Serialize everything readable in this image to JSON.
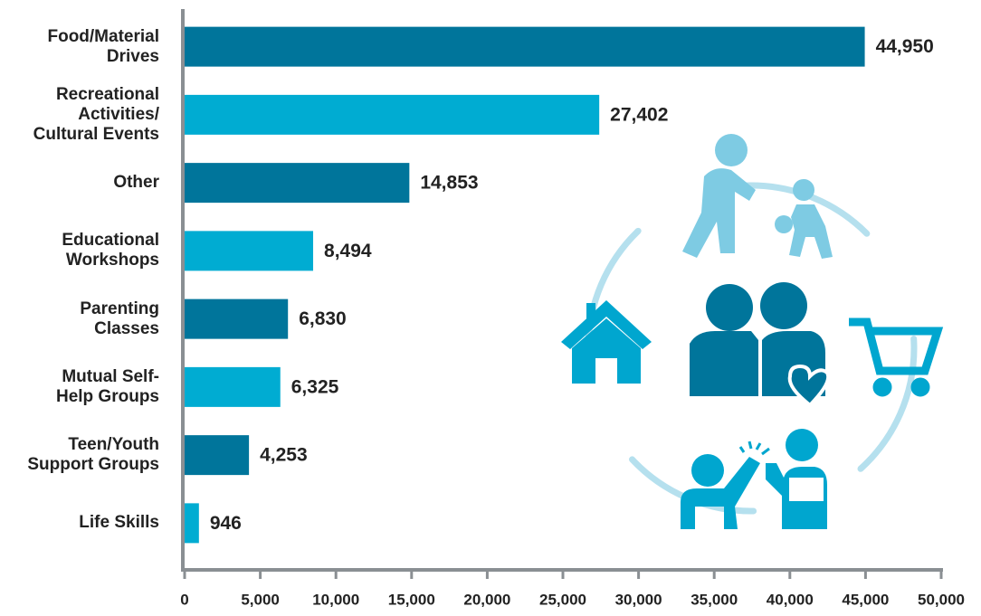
{
  "chart_data": {
    "type": "bar",
    "orientation": "horizontal",
    "categories": [
      "Food/Material\nDrives",
      "Recreational\nActivities/\nCultural Events",
      "Other",
      "Educational\nWorkshops",
      "Parenting\nClasses",
      "Mutual Self-\nHelp Groups",
      "Teen/Youth\nSupport Groups",
      "Life Skills"
    ],
    "values": [
      44950,
      27402,
      14853,
      8494,
      6830,
      6325,
      4253,
      946
    ],
    "value_labels": [
      "44,950",
      "27,402",
      "14,853",
      "8,494",
      "6,830",
      "6,325",
      "4,253",
      "946"
    ],
    "colors": [
      "#00759b",
      "#00acd2"
    ],
    "xlim": [
      0,
      50000
    ],
    "xticks": [
      0,
      {
        "value": 5000,
        "label": "5,000"
      },
      {
        "value": 10000,
        "label": "10,000"
      },
      {
        "value": 15000,
        "label": "15,000"
      },
      {
        "value": 20000,
        "label": "20,000"
      },
      {
        "value": 25000,
        "label": "25,000"
      },
      {
        "value": 30000,
        "label": "30,000"
      },
      {
        "value": 35000,
        "label": "35,000"
      },
      {
        "value": 40000,
        "label": "40,000"
      },
      {
        "value": 45000,
        "label": "45,000"
      },
      {
        "value": 50000,
        "label": "50,000"
      }
    ],
    "grid": false
  }
}
